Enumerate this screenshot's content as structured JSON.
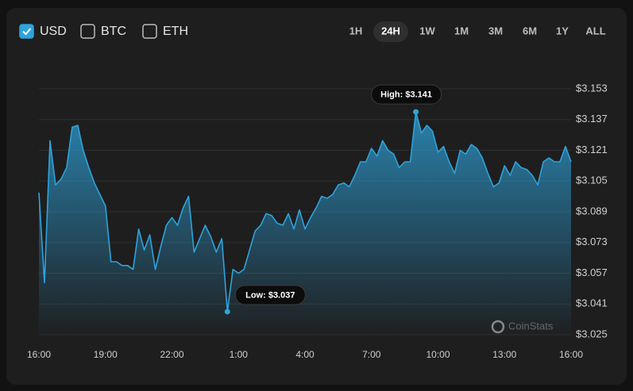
{
  "controls": {
    "currencies": [
      {
        "label": "USD",
        "checked": true
      },
      {
        "label": "BTC",
        "checked": false
      },
      {
        "label": "ETH",
        "checked": false
      }
    ],
    "ranges": [
      "1H",
      "24H",
      "1W",
      "1M",
      "3M",
      "6M",
      "1Y",
      "ALL"
    ],
    "selected_range": "24H"
  },
  "chart_data": {
    "type": "line",
    "x": [
      0,
      0.25,
      0.5,
      0.75,
      1,
      1.25,
      1.5,
      1.75,
      2,
      2.25,
      2.5,
      2.75,
      3,
      3.25,
      3.5,
      3.75,
      4,
      4.25,
      4.5,
      4.75,
      5,
      5.25,
      5.5,
      5.75,
      6,
      6.25,
      6.5,
      6.75,
      7,
      7.25,
      7.5,
      7.75,
      8,
      8.25,
      8.5,
      8.75,
      9,
      9.25,
      9.5,
      9.75,
      10,
      10.25,
      10.5,
      10.75,
      11,
      11.25,
      11.5,
      11.75,
      12,
      12.25,
      12.5,
      12.75,
      13,
      13.25,
      13.5,
      13.75,
      14,
      14.25,
      14.5,
      14.75,
      15,
      15.25,
      15.5,
      15.75,
      16,
      16.25,
      16.5,
      16.75,
      17,
      17.25,
      17.5,
      17.75,
      18,
      18.25,
      18.5,
      18.75,
      19,
      19.25,
      19.5,
      19.75,
      20,
      20.25,
      20.5,
      20.75,
      21,
      21.25,
      21.5,
      21.75,
      22,
      22.25,
      22.5,
      22.75,
      23,
      23.25,
      23.5,
      23.75,
      24
    ],
    "series": [
      {
        "color": "#2ea3dc",
        "values": [
          3.099,
          3.052,
          3.126,
          3.103,
          3.106,
          3.112,
          3.133,
          3.134,
          3.121,
          3.112,
          3.104,
          3.098,
          3.092,
          3.063,
          3.063,
          3.061,
          3.061,
          3.059,
          3.08,
          3.069,
          3.077,
          3.059,
          3.071,
          3.082,
          3.086,
          3.082,
          3.091,
          3.097,
          3.068,
          3.075,
          3.082,
          3.076,
          3.068,
          3.075,
          3.037,
          3.059,
          3.057,
          3.059,
          3.069,
          3.079,
          3.082,
          3.088,
          3.087,
          3.083,
          3.082,
          3.088,
          3.08,
          3.09,
          3.08,
          3.086,
          3.091,
          3.097,
          3.096,
          3.098,
          3.103,
          3.104,
          3.102,
          3.108,
          3.115,
          3.115,
          3.122,
          3.118,
          3.126,
          3.121,
          3.119,
          3.112,
          3.115,
          3.115,
          3.141,
          3.13,
          3.134,
          3.131,
          3.12,
          3.123,
          3.115,
          3.109,
          3.121,
          3.119,
          3.124,
          3.122,
          3.117,
          3.109,
          3.102,
          3.104,
          3.113,
          3.108,
          3.115,
          3.112,
          3.111,
          3.108,
          3.103,
          3.115,
          3.117,
          3.115,
          3.115,
          3.123,
          3.115
        ]
      }
    ],
    "xlim": [
      0,
      24
    ],
    "xticks": [
      {
        "value": 0,
        "label": "16:00"
      },
      {
        "value": 3,
        "label": "19:00"
      },
      {
        "value": 6,
        "label": "22:00"
      },
      {
        "value": 9,
        "label": "1:00"
      },
      {
        "value": 12,
        "label": "4:00"
      },
      {
        "value": 15,
        "label": "7:00"
      },
      {
        "value": 18,
        "label": "10:00"
      },
      {
        "value": 21,
        "label": "13:00"
      },
      {
        "value": 24,
        "label": "16:00"
      }
    ],
    "ylim": [
      3.025,
      3.153
    ],
    "yticks": [
      {
        "value": 3.025,
        "label": "$3.025"
      },
      {
        "value": 3.041,
        "label": "$3.041"
      },
      {
        "value": 3.057,
        "label": "$3.057"
      },
      {
        "value": 3.073,
        "label": "$3.073"
      },
      {
        "value": 3.089,
        "label": "$3.089"
      },
      {
        "value": 3.105,
        "label": "$3.105"
      },
      {
        "value": 3.121,
        "label": "$3.121"
      },
      {
        "value": 3.137,
        "label": "$3.137"
      },
      {
        "value": 3.153,
        "label": "$3.153"
      }
    ],
    "grid": true,
    "high_label": "High: $3.141",
    "low_label": "Low: $3.037",
    "watermark": "CoinStats"
  }
}
